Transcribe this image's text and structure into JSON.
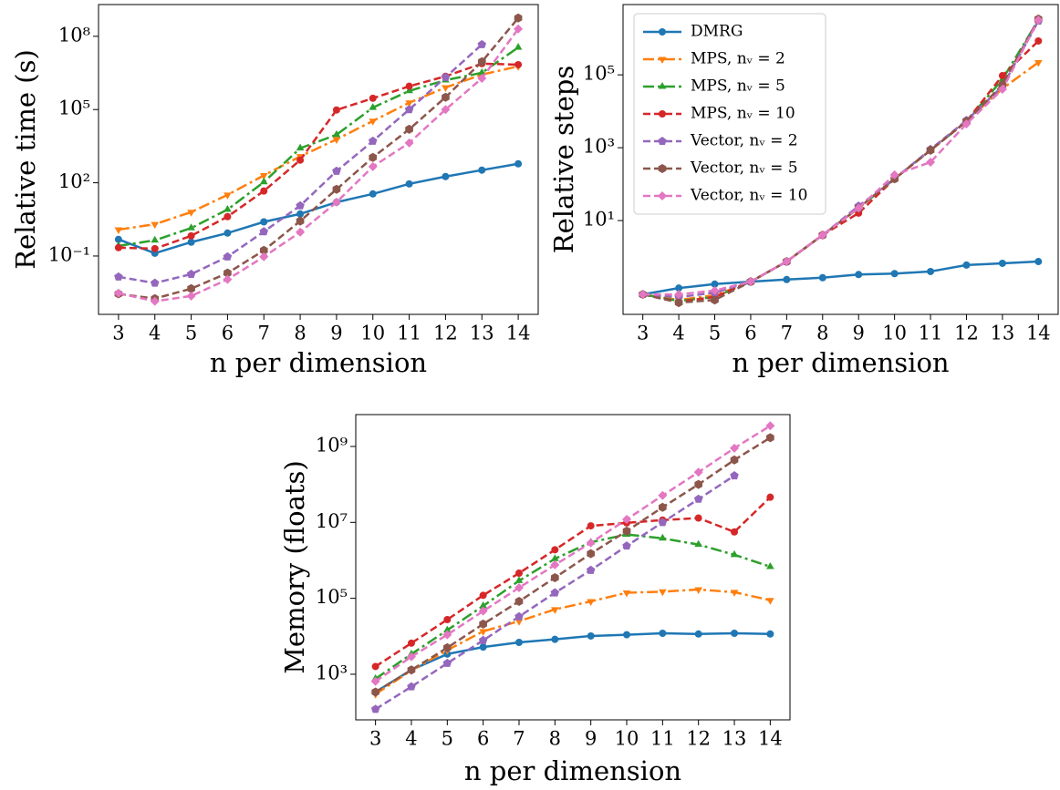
{
  "chart_data": [
    {
      "type": "line",
      "ylabel": "Relative time (s)",
      "xlabel": "n per dimension",
      "yscale": "log",
      "x": [
        3,
        4,
        5,
        6,
        7,
        8,
        9,
        10,
        11,
        12,
        13,
        14
      ],
      "xlim": [
        2.45,
        14.55
      ],
      "xticks": [
        3,
        4,
        5,
        6,
        7,
        8,
        9,
        10,
        11,
        12,
        13,
        14
      ],
      "ylim": [
        0.000407,
        2000000000.0
      ],
      "yticks": [
        {
          "value": 0.1,
          "label": "10⁻¹"
        },
        {
          "value": 100,
          "label": "10²"
        },
        {
          "value": 100000,
          "label": "10⁵"
        },
        {
          "value": 100000000,
          "label": "10⁸"
        }
      ],
      "series": [
        {
          "color": "#1f77b4",
          "linestyle": "solid",
          "marker": "circle",
          "values": [
            0.48,
            0.13,
            0.37,
            0.87,
            2.5,
            5.3,
            16,
            35,
            90,
            180,
            330,
            600
          ]
        },
        {
          "color": "#ff7f0e",
          "linestyle": "dashdot",
          "marker": "triangle-down",
          "values": [
            1.2,
            2,
            6.3,
            32,
            200,
            1200,
            6000,
            34000,
            190000,
            800000,
            2700000,
            5900000
          ]
        },
        {
          "color": "#2ca02c",
          "linestyle": "dashdot",
          "marker": "triangle-up",
          "values": [
            0.26,
            0.44,
            1.4,
            8,
            107,
            2600,
            9300,
            120000,
            580000,
            1600000,
            3200000,
            35000000
          ]
        },
        {
          "color": "#d62728",
          "linestyle": "dashed",
          "marker": "circle",
          "values": [
            0.22,
            0.2,
            0.67,
            4.1,
            46,
            850,
            96000,
            290000,
            900000,
            2300000,
            7600000,
            6900000
          ]
        },
        {
          "color": "#9467bd",
          "linestyle": "dashed",
          "marker": "pentagon",
          "values": [
            0.014,
            0.0078,
            0.018,
            0.093,
            1.0,
            11.5,
            300,
            5100,
            100000,
            2100000,
            46000000,
            null
          ]
        },
        {
          "color": "#8c564b",
          "linestyle": "dashed",
          "marker": "hexagon",
          "values": [
            0.0028,
            0.0018,
            0.0046,
            0.02,
            0.17,
            2.7,
            54,
            1100,
            15500,
            320000,
            9100000,
            560000000
          ]
        },
        {
          "color": "#e377c2",
          "linestyle": "dashed",
          "marker": "diamond",
          "values": [
            0.003,
            0.0014,
            0.0023,
            0.011,
            0.093,
            0.95,
            16,
            460,
            4300,
            100000,
            1900000,
            200000000
          ]
        }
      ]
    },
    {
      "type": "line",
      "ylabel": "Relative steps",
      "xlabel": "n per dimension",
      "yscale": "log",
      "legend": "upper left",
      "x": [
        3,
        4,
        5,
        6,
        7,
        8,
        9,
        10,
        11,
        12,
        13,
        14
      ],
      "xlim": [
        2.45,
        14.55
      ],
      "xticks": [
        3,
        4,
        5,
        6,
        7,
        8,
        9,
        10,
        11,
        12,
        13,
        14
      ],
      "ylim": [
        0.0266,
        8500000
      ],
      "yticks": [
        {
          "value": 10,
          "label": "10¹"
        },
        {
          "value": 1000,
          "label": "10³"
        },
        {
          "value": 100000,
          "label": "10⁵"
        }
      ],
      "series": [
        {
          "name": "DMRG",
          "color": "#1f77b4",
          "linestyle": "solid",
          "marker": "circle",
          "values": [
            0.094,
            0.14,
            0.18,
            0.21,
            0.24,
            0.27,
            0.33,
            0.35,
            0.4,
            0.6,
            0.67,
            0.75
          ]
        },
        {
          "name": "MPS, nᵥ = 2",
          "color": "#ff7f0e",
          "linestyle": "dashdot",
          "marker": "triangle-down",
          "values": [
            0.094,
            0.066,
            0.089,
            0.21,
            0.75,
            4,
            22,
            140,
            850,
            5300,
            42000,
            220000
          ]
        },
        {
          "name": "MPS, nᵥ = 5",
          "color": "#2ca02c",
          "linestyle": "dashdot",
          "marker": "triangle-up",
          "values": [
            0.094,
            0.062,
            0.08,
            0.21,
            0.75,
            4,
            22,
            140,
            850,
            5300,
            75000,
            3200000
          ]
        },
        {
          "name": "MPS, nᵥ = 10",
          "color": "#d62728",
          "linestyle": "dashed",
          "marker": "circle",
          "values": [
            0.094,
            0.059,
            0.08,
            0.21,
            0.75,
            4,
            16,
            140,
            850,
            5300,
            95000,
            850000
          ]
        },
        {
          "name": "Vector, nᵥ = 2",
          "color": "#9467bd",
          "linestyle": "dashed",
          "marker": "pentagon",
          "values": [
            0.094,
            0.079,
            0.105,
            0.21,
            0.75,
            4,
            25,
            140,
            900,
            5600,
            48000,
            3000000
          ]
        },
        {
          "name": "Vector, nᵥ = 5",
          "color": "#8c564b",
          "linestyle": "dashed",
          "marker": "hexagon",
          "values": [
            0.094,
            0.056,
            0.066,
            0.21,
            0.75,
            4,
            22,
            140,
            850,
            5300,
            53000,
            3400000
          ]
        },
        {
          "name": "Vector, nᵥ = 10",
          "color": "#e377c2",
          "linestyle": "dashed",
          "marker": "diamond",
          "values": [
            0.094,
            0.094,
            0.12,
            0.21,
            0.75,
            4,
            22,
            180,
            400,
            4500,
            40000,
            3200000
          ]
        }
      ]
    },
    {
      "type": "line",
      "ylabel": "Memory (floats)",
      "xlabel": "n per dimension",
      "yscale": "log",
      "x": [
        3,
        4,
        5,
        6,
        7,
        8,
        9,
        10,
        11,
        12,
        13,
        14
      ],
      "xlim": [
        2.45,
        14.55
      ],
      "xticks": [
        3,
        4,
        5,
        6,
        7,
        8,
        9,
        10,
        11,
        12,
        13,
        14
      ],
      "ylim": [
        63,
        6900000000
      ],
      "yticks": [
        {
          "value": 1000,
          "label": "10³"
        },
        {
          "value": 100000,
          "label": "10⁵"
        },
        {
          "value": 10000000,
          "label": "10⁷"
        },
        {
          "value": 1000000000,
          "label": "10⁹"
        }
      ],
      "series": [
        {
          "color": "#1f77b4",
          "linestyle": "solid",
          "marker": "circle",
          "values": [
            340,
            1300,
            3400,
            5200,
            6900,
            8300,
            10200,
            11000,
            12000,
            11500,
            12000,
            11500
          ]
        },
        {
          "color": "#ff7f0e",
          "linestyle": "dashdot",
          "marker": "triangle-down",
          "values": [
            300,
            1260,
            4300,
            13500,
            25000,
            51000,
            83000,
            140000,
            150000,
            170000,
            145000,
            89000
          ]
        },
        {
          "color": "#2ca02c",
          "linestyle": "dashdot",
          "marker": "triangle-up",
          "values": [
            760,
            3400,
            14500,
            63000,
            290000,
            1100000,
            3000000,
            4800000,
            3800000,
            2600000,
            1400000,
            680000
          ]
        },
        {
          "color": "#d62728",
          "linestyle": "dashed",
          "marker": "circle",
          "values": [
            1600,
            6600,
            27500,
            120000,
            460000,
            1900000,
            8100000,
            9700000,
            11500000,
            13000000,
            5600000,
            46000000
          ]
        },
        {
          "color": "#9467bd",
          "linestyle": "dashed",
          "marker": "pentagon",
          "values": [
            120,
            470,
            1950,
            7800,
            33000,
            140000,
            550000,
            2400000,
            10000000,
            41000000,
            170000000,
            null
          ]
        },
        {
          "color": "#8c564b",
          "linestyle": "dashed",
          "marker": "hexagon",
          "values": [
            340,
            1300,
            5000,
            21000,
            83000,
            350000,
            1500000,
            5900000,
            25000000,
            100000000,
            440000000,
            1700000000
          ]
        },
        {
          "color": "#e377c2",
          "linestyle": "dashed",
          "marker": "diamond",
          "values": [
            650,
            2900,
            11000,
            46000,
            190000,
            760000,
            2900000,
            12000000,
            51000000,
            210000000,
            900000000,
            3500000000
          ]
        }
      ]
    }
  ]
}
